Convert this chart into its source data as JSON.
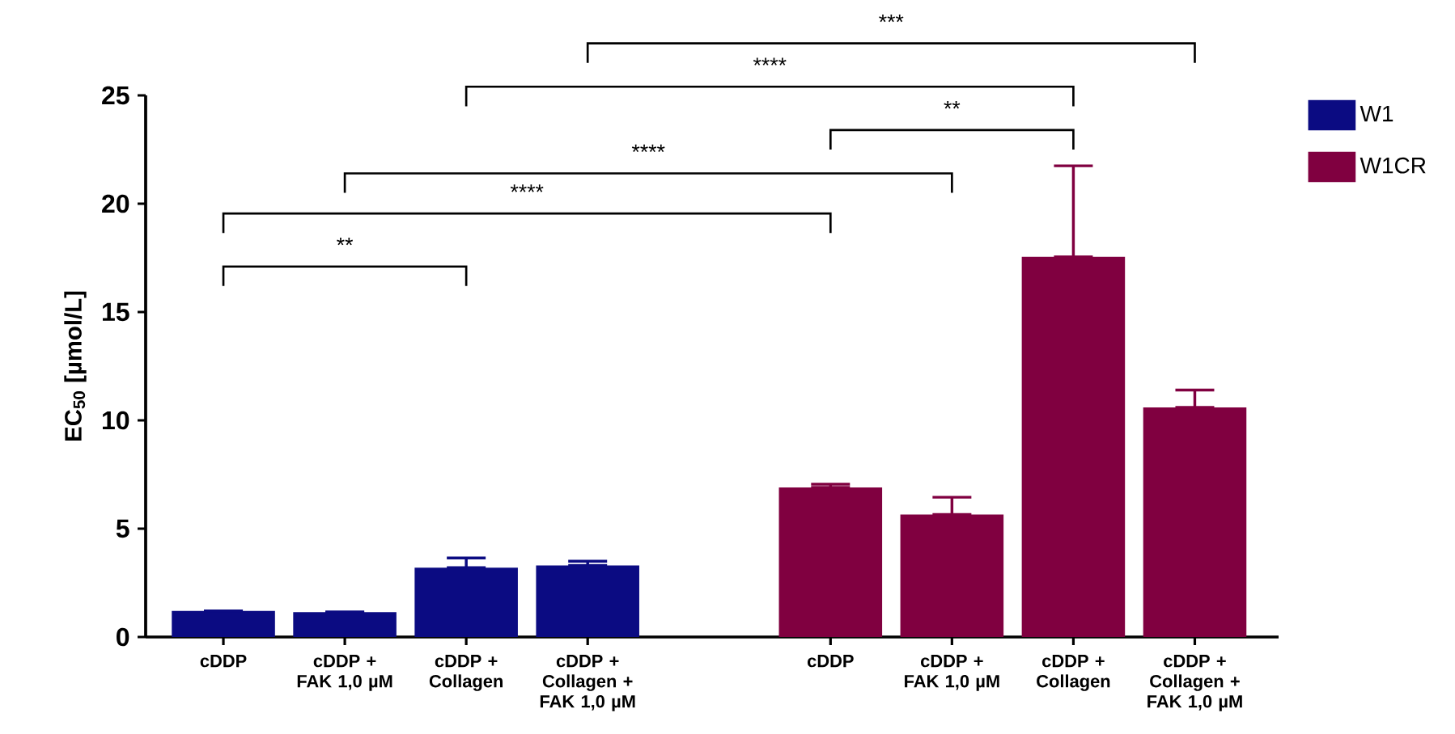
{
  "chart_data": {
    "type": "bar",
    "ylabel": "EC$_{50}$ [µmol/L]",
    "categories": [
      "cDDP",
      "cDDP + FAK 1,0 µM",
      "cDDP + Collagen",
      "cDDP + Collagen + FAK 1,0 µM",
      null,
      "cDDP",
      "cDDP + FAK 1,0 µM",
      "cDDP + Collagen",
      "cDDP + Collagen + FAK 1,0 µM"
    ],
    "series": [
      {
        "name": "W1",
        "color": "#0b0b82",
        "values": [
          1.2,
          1.15,
          3.2,
          3.3,
          null,
          null,
          null,
          null,
          null
        ],
        "errors": [
          null,
          null,
          [
            3.2,
            3.65
          ],
          [
            3.3,
            3.5
          ],
          null,
          null,
          null,
          null,
          null
        ]
      },
      {
        "name": "W1CR",
        "color": "#800040",
        "values": [
          null,
          null,
          null,
          null,
          null,
          6.9,
          5.65,
          17.55,
          10.6
        ],
        "errors": [
          null,
          null,
          null,
          null,
          null,
          [
            6.9,
            7.05
          ],
          [
            5.65,
            6.45
          ],
          [
            17.55,
            21.75
          ],
          [
            10.6,
            11.4
          ]
        ]
      }
    ],
    "ylim": [
      0,
      25
    ],
    "yticks": [
      0,
      5,
      10,
      15,
      20,
      25
    ],
    "legend": "top right",
    "annotations": [
      "**",
      "****",
      "****",
      "**",
      "****",
      "***"
    ]
  }
}
